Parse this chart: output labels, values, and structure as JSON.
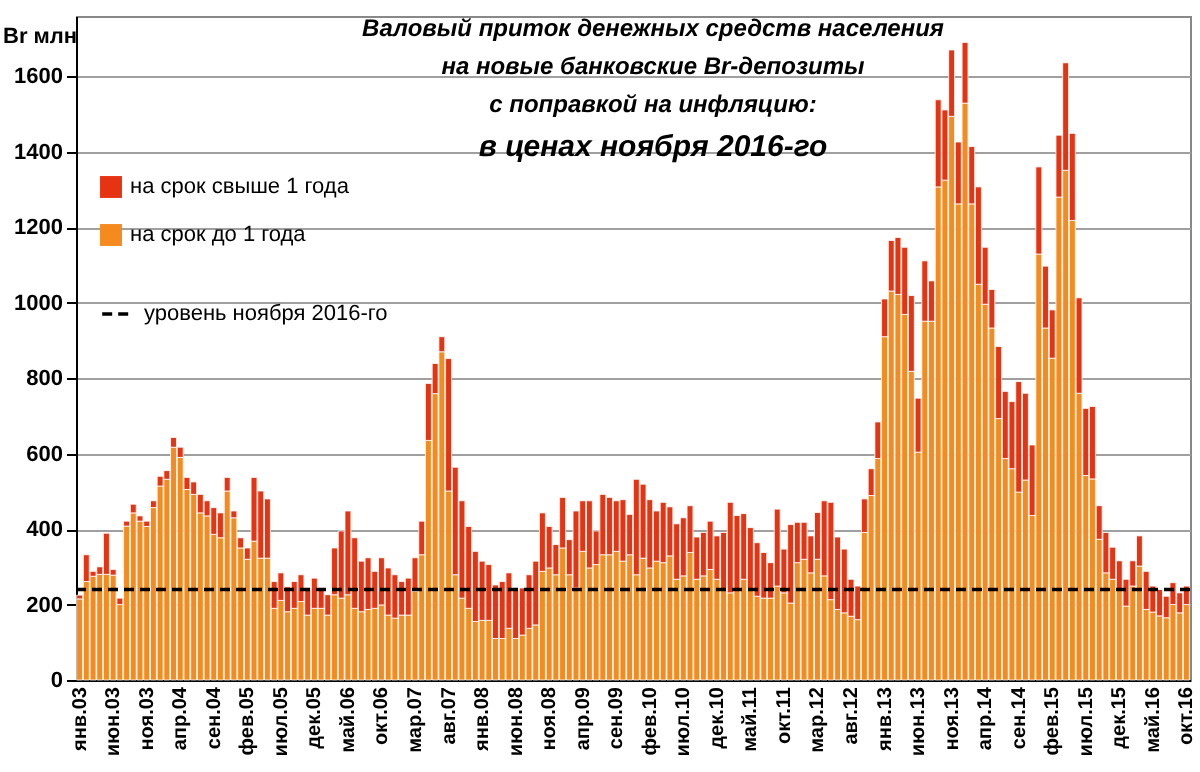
{
  "chart_data": {
    "type": "bar",
    "stacked": true,
    "title": "Валовый  приток денежных средств населения\nна новые банковские Br-депозиты\nс поправкой на инфляцию:\nв ценах ноября 2016-го",
    "ylabel": "Br млн",
    "categories": [
      "янв.03",
      null,
      null,
      null,
      null,
      "июн.03",
      null,
      null,
      null,
      null,
      "ноя.03",
      null,
      null,
      null,
      null,
      "апр.04",
      null,
      null,
      null,
      null,
      "сен.04",
      null,
      null,
      null,
      null,
      "фев.05",
      null,
      null,
      null,
      null,
      "июл.05",
      null,
      null,
      null,
      null,
      "дек.05",
      null,
      null,
      null,
      null,
      "май.06",
      null,
      null,
      null,
      null,
      "окт.06",
      null,
      null,
      null,
      null,
      "мар.07",
      null,
      null,
      null,
      null,
      "авг.07",
      null,
      null,
      null,
      null,
      "янв.08",
      null,
      null,
      null,
      null,
      "июн.08",
      null,
      null,
      null,
      null,
      "ноя.08",
      null,
      null,
      null,
      null,
      "апр.09",
      null,
      null,
      null,
      null,
      "сен.09",
      null,
      null,
      null,
      null,
      "фев.10",
      null,
      null,
      null,
      null,
      "июл.10",
      null,
      null,
      null,
      null,
      "дек.10",
      null,
      null,
      null,
      null,
      "май.11",
      null,
      null,
      null,
      null,
      "окт.11",
      null,
      null,
      null,
      null,
      "мар.12",
      null,
      null,
      null,
      null,
      "авг.12",
      null,
      null,
      null,
      null,
      "янв.13",
      null,
      null,
      null,
      null,
      "июн.13",
      null,
      null,
      null,
      null,
      "ноя.13",
      null,
      null,
      null,
      null,
      "апр.14",
      null,
      null,
      null,
      null,
      "сен.14",
      null,
      null,
      null,
      null,
      "фев.15",
      null,
      null,
      null,
      null,
      "июл.15",
      null,
      null,
      null,
      null,
      "дек.15",
      null,
      null,
      null,
      null,
      "май.16",
      null,
      null,
      null,
      null,
      "окт.16"
    ],
    "series": [
      {
        "name": "на срок до 1 года",
        "color": "#f58a1f",
        "values": [
          215,
          261,
          275,
          280,
          280,
          278,
          200,
          408,
          443,
          421,
          407,
          457,
          514,
          532,
          617,
          590,
          505,
          492,
          443,
          435,
          386,
          377,
          501,
          430,
          350,
          320,
          368,
          323,
          323,
          190,
          211,
          181,
          190,
          208,
          172,
          190,
          190,
          172,
          226,
          217,
          226,
          190,
          181,
          187,
          190,
          199,
          172,
          164,
          172,
          172,
          235,
          332,
          635,
          759,
          870,
          501,
          279,
          217,
          190,
          155,
          158,
          158,
          110,
          110,
          137,
          110,
          119,
          137,
          146,
          288,
          297,
          279,
          350,
          279,
          244,
          341,
          297,
          306,
          332,
          332,
          341,
          315,
          332,
          279,
          323,
          297,
          315,
          311,
          329,
          267,
          276,
          338,
          267,
          276,
          293,
          267,
          240,
          231,
          240,
          267,
          240,
          222,
          217,
          217,
          249,
          231,
          204,
          311,
          320,
          284,
          320,
          276,
          213,
          187,
          178,
          169,
          160,
          391,
          489,
          587,
          910,
          1031,
          1022,
          969,
          818,
          604,
          951,
          951,
          1307,
          1325,
          1494,
          1262,
          1529,
          1262,
          1049,
          996,
          933,
          693,
          587,
          560,
          498,
          530,
          436,
          1129,
          933,
          853,
          1280,
          1351,
          1218,
          760,
          542,
          533,
          373,
          284,
          267,
          240,
          196,
          249,
          302,
          187,
          180,
          170,
          165,
          200,
          178,
          200
        ]
      },
      {
        "name": "на срок свыше 1 года",
        "color": "#e63312",
        "values": [
          10,
          71,
          13,
          20,
          109,
          15,
          17,
          13,
          23,
          14,
          14,
          18,
          26,
          23,
          26,
          27,
          32,
          33,
          49,
          40,
          71,
          66,
          36,
          18,
          27,
          30,
          169,
          178,
          157,
          71,
          73,
          66,
          71,
          71,
          72,
          80,
          54,
          54,
          124,
          178,
          222,
          187,
          134,
          137,
          98,
          125,
          125,
          115,
          89,
          98,
          89,
          89,
          151,
          80,
          40,
          351,
          285,
          258,
          217,
          186,
          157,
          148,
          142,
          151,
          147,
          130,
          125,
          142,
          169,
          155,
          110,
          80,
          134,
          93,
          204,
          134,
          178,
          89,
          160,
          152,
          134,
          163,
          107,
          253,
          196,
          181,
          133,
          160,
          130,
          147,
          154,
          124,
          112,
          115,
          128,
          115,
          151,
          240,
          196,
          174,
          164,
          142,
          121,
          94,
          204,
          116,
          208,
          107,
          98,
          98,
          124,
          199,
          258,
          192,
          169,
          98,
          89,
          89,
          71,
          97,
          100,
          134,
          151,
          178,
          201,
          143,
          160,
          107,
          231,
          186,
          176,
          164,
          161,
          152,
          258,
          151,
          102,
          191,
          178,
          178,
          293,
          230,
          187,
          231,
          164,
          128,
          164,
          285,
          231,
          253,
          178,
          192,
          89,
          107,
          85,
          76,
          71,
          67,
          80,
          101,
          69,
          70,
          57,
          58,
          53,
          49
        ]
      }
    ],
    "ylim": [
      0,
      1760
    ],
    "yticks": [
      0,
      200,
      400,
      600,
      800,
      1000,
      1200,
      1400,
      1600
    ],
    "grid": "y",
    "legend": "top left",
    "ref_lines": [
      {
        "axis": "y",
        "value": 240,
        "label": "уровень ноября 2016-го",
        "color": "#000000",
        "line_style": "dashed"
      }
    ]
  }
}
